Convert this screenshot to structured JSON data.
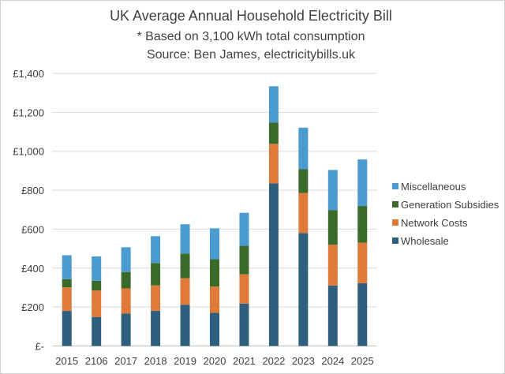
{
  "chart_data": {
    "type": "bar",
    "stacked": true,
    "title": "UK Average Annual Household Electricity Bill",
    "subtitle_lines": [
      "* Based on 3,100 kWh total consumption",
      "Source: Ben James, electricitybills.uk"
    ],
    "xlabel": "",
    "ylabel": "",
    "ylim": [
      0,
      1400
    ],
    "yticks": [
      0,
      200,
      400,
      600,
      800,
      1000,
      1200,
      1400
    ],
    "ytick_labels": [
      "£-",
      "£200",
      "£400",
      "£600",
      "£800",
      "£1,000",
      "£1,200",
      "£1,400"
    ],
    "grid": true,
    "legend_position": "right",
    "categories": [
      "2015",
      "2106",
      "2017",
      "2018",
      "2019",
      "2020",
      "2021",
      "2022",
      "2023",
      "2024",
      "2025"
    ],
    "series": [
      {
        "name": "Wholesale",
        "color": "#2e5f7f",
        "values": [
          180,
          149,
          166,
          181,
          212,
          170,
          218,
          835,
          580,
          311,
          322
        ]
      },
      {
        "name": "Network Costs",
        "color": "#e07a3b",
        "values": [
          121,
          136,
          130,
          130,
          136,
          135,
          150,
          203,
          206,
          209,
          209
        ]
      },
      {
        "name": "Generation Subsidies",
        "color": "#3b6b2b",
        "values": [
          42,
          50,
          84,
          115,
          127,
          141,
          147,
          110,
          123,
          177,
          188
        ]
      },
      {
        "name": "Miscellaneous",
        "color": "#4a9bd0",
        "values": [
          123,
          125,
          127,
          138,
          150,
          158,
          169,
          186,
          212,
          207,
          239
        ]
      }
    ]
  }
}
